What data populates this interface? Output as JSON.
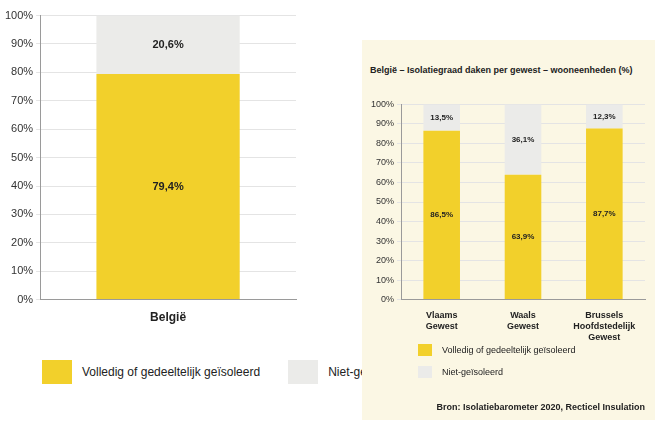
{
  "chart_data": [
    {
      "type": "bar",
      "categories": [
        "België"
      ],
      "series": [
        {
          "name": "Volledig of gedeeltelijk geïsoleerd",
          "color": "#f2d02b",
          "values": [
            79.4
          ],
          "value_labels": [
            "79,4%"
          ]
        },
        {
          "name": "Niet-geïsoleerd",
          "color": "#ebebe9",
          "values": [
            20.6
          ],
          "value_labels": [
            "20,6%"
          ]
        }
      ],
      "stacked": true,
      "data_labels": true,
      "grid": true,
      "legend": "bottom",
      "ylim": [
        0,
        100
      ],
      "yticks": [
        {
          "value": 0,
          "label": "0%"
        },
        {
          "value": 10,
          "label": "10%"
        },
        {
          "value": 20,
          "label": "20%"
        },
        {
          "value": 30,
          "label": "30%"
        },
        {
          "value": 40,
          "label": "40%"
        },
        {
          "value": 50,
          "label": "50%"
        },
        {
          "value": 60,
          "label": "60%"
        },
        {
          "value": 70,
          "label": "70%"
        },
        {
          "value": 80,
          "label": "80%"
        },
        {
          "value": 90,
          "label": "90%"
        },
        {
          "value": 100,
          "label": "100%"
        }
      ]
    },
    {
      "type": "bar",
      "title": "België – Isolatiegraad daken per gewest – wooneenheden (%)",
      "categories": [
        "Vlaams Gewest",
        "Waals Gewest",
        "Brussels Hoofdstedelijk Gewest"
      ],
      "series": [
        {
          "name": "Volledig of gedeeltelijk geïsoleerd",
          "color": "#f2d02b",
          "values": [
            86.5,
            63.9,
            87.7
          ],
          "value_labels": [
            "86,5%",
            "63,9%",
            "87,7%"
          ]
        },
        {
          "name": "Niet-geïsoleerd",
          "color": "#ebebe9",
          "values": [
            13.5,
            36.1,
            12.3
          ],
          "value_labels": [
            "13,5%",
            "36,1%",
            "12,3%"
          ]
        }
      ],
      "stacked": true,
      "data_labels": true,
      "grid": true,
      "legend": "bottom",
      "ylim": [
        0,
        100
      ],
      "yticks": [
        {
          "value": 0,
          "label": "0%"
        },
        {
          "value": 10,
          "label": "10%"
        },
        {
          "value": 20,
          "label": "20%"
        },
        {
          "value": 30,
          "label": "30%"
        },
        {
          "value": 40,
          "label": "40%"
        },
        {
          "value": 50,
          "label": "50%"
        },
        {
          "value": 60,
          "label": "60%"
        },
        {
          "value": 70,
          "label": "70%"
        },
        {
          "value": 80,
          "label": "80%"
        },
        {
          "value": 90,
          "label": "90%"
        },
        {
          "value": 100,
          "label": "100%"
        }
      ],
      "source": "Bron: Isolatiebarometer 2020, Recticel Insulation"
    }
  ]
}
